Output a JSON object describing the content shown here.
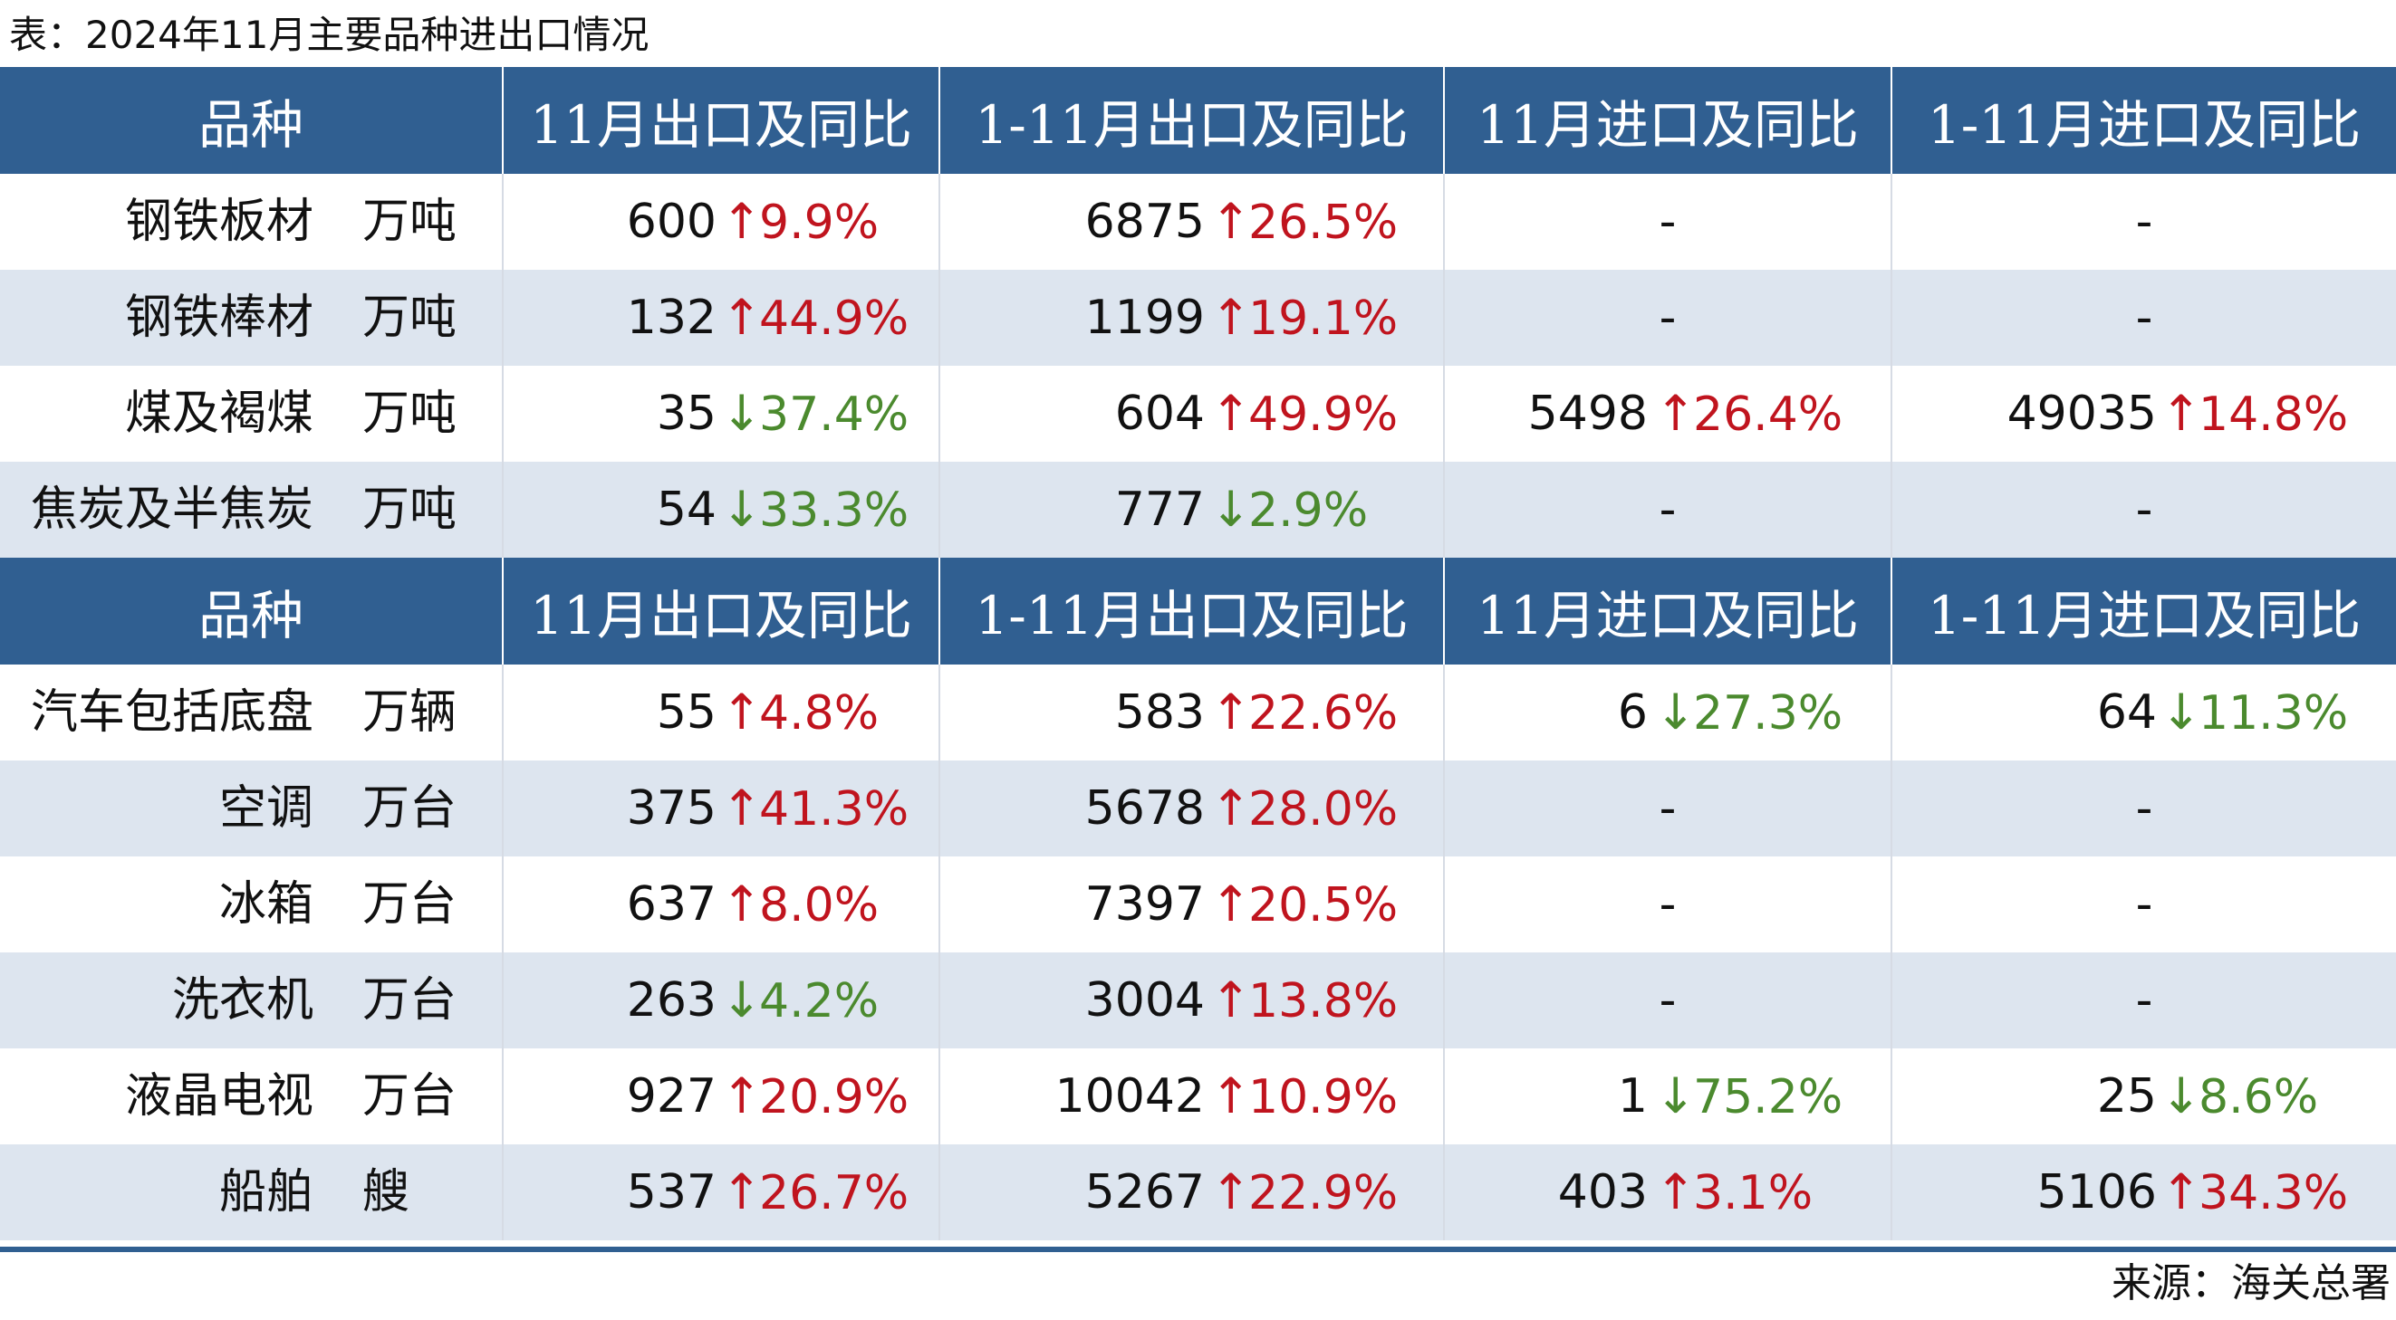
{
  "caption": "表：2024年11月主要品种进出口情况",
  "headers": [
    "品种",
    "11月出口及同比",
    "1-11月出口及同比",
    "11月进口及同比",
    "1-11月进口及同比"
  ],
  "sections": [
    {
      "rows": [
        {
          "name": "钢铁板材",
          "unit": "万吨",
          "cells": [
            {
              "value": "600",
              "dir": "up",
              "pct": "9.9%"
            },
            {
              "value": "6875",
              "dir": "up",
              "pct": "26.5%"
            },
            {
              "dash": "-"
            },
            {
              "dash": "-"
            }
          ]
        },
        {
          "name": "钢铁棒材",
          "unit": "万吨",
          "cells": [
            {
              "value": "132",
              "dir": "up",
              "pct": "44.9%"
            },
            {
              "value": "1199",
              "dir": "up",
              "pct": "19.1%"
            },
            {
              "dash": "-"
            },
            {
              "dash": "-"
            }
          ]
        },
        {
          "name": "煤及褐煤",
          "unit": "万吨",
          "cells": [
            {
              "value": "35",
              "dir": "down",
              "pct": "37.4%"
            },
            {
              "value": "604",
              "dir": "up",
              "pct": "49.9%"
            },
            {
              "value": "5498",
              "dir": "up",
              "pct": "26.4%"
            },
            {
              "value": "49035",
              "dir": "up",
              "pct": "14.8%"
            }
          ]
        },
        {
          "name": "焦炭及半焦炭",
          "unit": "万吨",
          "cells": [
            {
              "value": "54",
              "dir": "down",
              "pct": "33.3%"
            },
            {
              "value": "777",
              "dir": "down",
              "pct": "2.9%"
            },
            {
              "dash": "-"
            },
            {
              "dash": "-"
            }
          ]
        }
      ]
    },
    {
      "rows": [
        {
          "name": "汽车包括底盘",
          "unit": "万辆",
          "cells": [
            {
              "value": "55",
              "dir": "up",
              "pct": "4.8%"
            },
            {
              "value": "583",
              "dir": "up",
              "pct": "22.6%"
            },
            {
              "value": "6",
              "dir": "down",
              "pct": "27.3%"
            },
            {
              "value": "64",
              "dir": "down",
              "pct": "11.3%"
            }
          ]
        },
        {
          "name": "空调",
          "unit": "万台",
          "cells": [
            {
              "value": "375",
              "dir": "up",
              "pct": "41.3%"
            },
            {
              "value": "5678",
              "dir": "up",
              "pct": "28.0%"
            },
            {
              "dash": "-"
            },
            {
              "dash": "-"
            }
          ]
        },
        {
          "name": "冰箱",
          "unit": "万台",
          "cells": [
            {
              "value": "637",
              "dir": "up",
              "pct": "8.0%"
            },
            {
              "value": "7397",
              "dir": "up",
              "pct": "20.5%"
            },
            {
              "dash": "-"
            },
            {
              "dash": "-"
            }
          ]
        },
        {
          "name": "洗衣机",
          "unit": "万台",
          "cells": [
            {
              "value": "263",
              "dir": "down",
              "pct": "4.2%"
            },
            {
              "value": "3004",
              "dir": "up",
              "pct": "13.8%"
            },
            {
              "dash": "-"
            },
            {
              "dash": "-"
            }
          ]
        },
        {
          "name": "液晶电视",
          "unit": "万台",
          "cells": [
            {
              "value": "927",
              "dir": "up",
              "pct": "20.9%"
            },
            {
              "value": "10042",
              "dir": "up",
              "pct": "10.9%"
            },
            {
              "value": "1",
              "dir": "down",
              "pct": "75.2%"
            },
            {
              "value": "25",
              "dir": "down",
              "pct": "8.6%"
            }
          ]
        },
        {
          "name": "船舶",
          "unit": "艘",
          "cells": [
            {
              "value": "537",
              "dir": "up",
              "pct": "26.7%"
            },
            {
              "value": "5267",
              "dir": "up",
              "pct": "22.9%"
            },
            {
              "value": "403",
              "dir": "up",
              "pct": "3.1%"
            },
            {
              "value": "5106",
              "dir": "up",
              "pct": "34.3%"
            }
          ]
        }
      ]
    }
  ],
  "arrows": {
    "up": "↑",
    "down": "↓"
  },
  "colors": {
    "header_bg": "#305f91",
    "up": "#c0141e",
    "down": "#4b8a2e",
    "stripe": "#dde5ef"
  },
  "source": "来源：海关总署"
}
